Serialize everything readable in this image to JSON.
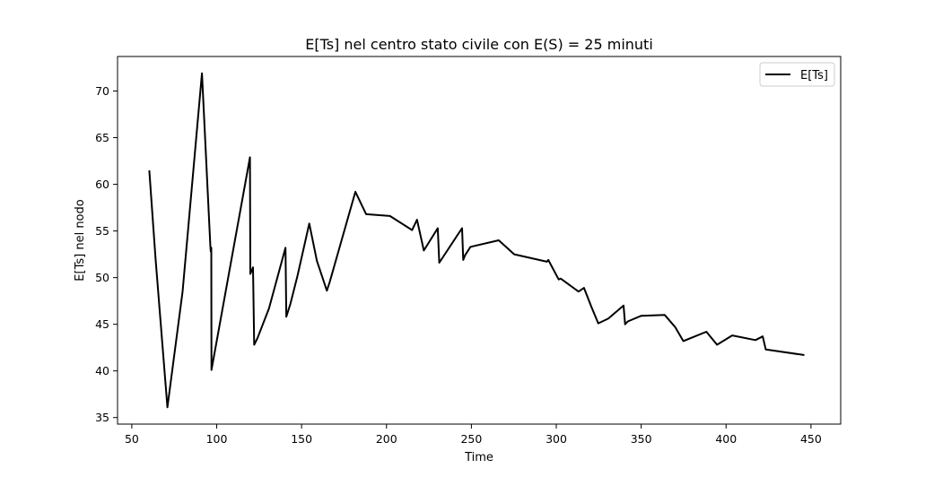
{
  "chart_data": {
    "type": "line",
    "title": "E[Ts] nel centro stato civile con E(S) = 25 minuti",
    "xlabel": "Time",
    "ylabel": "E[Ts] nel nodo",
    "xlim": [
      41.6,
      467.5
    ],
    "ylim": [
      34.3,
      73.7
    ],
    "xticks": [
      50,
      100,
      150,
      200,
      250,
      300,
      350,
      400,
      450
    ],
    "yticks": [
      35,
      40,
      45,
      50,
      55,
      60,
      65,
      70
    ],
    "grid": false,
    "legend_position": "top-right",
    "series": [
      {
        "name": "E[Ts]",
        "color": "#000000",
        "points": [
          [
            60.3,
            61.5
          ],
          [
            64.0,
            52.0
          ],
          [
            71.0,
            36.1
          ],
          [
            79.9,
            48.5
          ],
          [
            91.3,
            71.9
          ],
          [
            96.3,
            53.3
          ],
          [
            96.5,
            52.8
          ],
          [
            96.8,
            53.2
          ],
          [
            96.9,
            40.1
          ],
          [
            119.6,
            62.9
          ],
          [
            119.8,
            50.4
          ],
          [
            121.4,
            51.1
          ],
          [
            122.1,
            42.8
          ],
          [
            124.0,
            43.5
          ],
          [
            130.8,
            46.7
          ],
          [
            140.5,
            53.2
          ],
          [
            141.0,
            45.8
          ],
          [
            143.4,
            47.2
          ],
          [
            147.6,
            50.2
          ],
          [
            154.5,
            55.8
          ],
          [
            159.0,
            51.8
          ],
          [
            164.9,
            48.6
          ],
          [
            166.5,
            49.5
          ],
          [
            181.7,
            59.2
          ],
          [
            188.0,
            56.8
          ],
          [
            202.0,
            56.6
          ],
          [
            215.1,
            55.1
          ],
          [
            218.0,
            56.2
          ],
          [
            222.0,
            52.9
          ],
          [
            230.2,
            55.3
          ],
          [
            231.1,
            51.6
          ],
          [
            244.5,
            55.3
          ],
          [
            245.2,
            51.9
          ],
          [
            246.3,
            52.4
          ],
          [
            249.5,
            53.3
          ],
          [
            266.1,
            54.0
          ],
          [
            275.2,
            52.5
          ],
          [
            294.5,
            51.7
          ],
          [
            295.3,
            51.9
          ],
          [
            301.4,
            49.8
          ],
          [
            302.6,
            49.9
          ],
          [
            313.1,
            48.5
          ],
          [
            316.3,
            48.9
          ],
          [
            320.6,
            46.9
          ],
          [
            324.7,
            45.1
          ],
          [
            330.6,
            45.6
          ],
          [
            339.6,
            47.0
          ],
          [
            340.5,
            45.0
          ],
          [
            342.1,
            45.3
          ],
          [
            349.9,
            45.9
          ],
          [
            363.8,
            46.0
          ],
          [
            370.0,
            44.7
          ],
          [
            374.8,
            43.2
          ],
          [
            388.4,
            44.2
          ],
          [
            394.7,
            42.8
          ],
          [
            403.6,
            43.8
          ],
          [
            417.3,
            43.3
          ],
          [
            421.6,
            43.7
          ],
          [
            423.4,
            42.3
          ],
          [
            446.1,
            41.7
          ]
        ]
      }
    ]
  }
}
